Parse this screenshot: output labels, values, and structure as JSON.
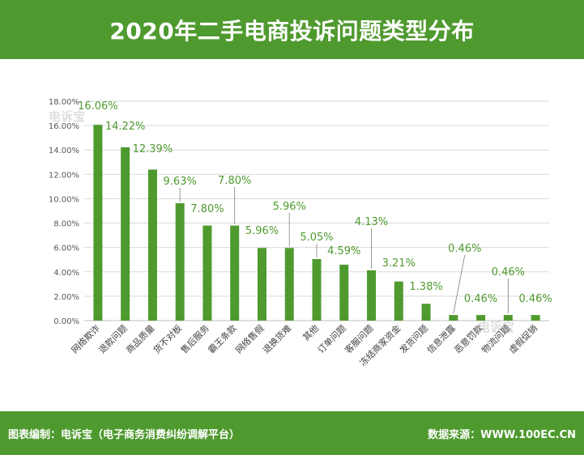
{
  "header": {
    "title": "2020年二手电商投诉问题类型分布"
  },
  "footer": {
    "left": "图表编制：电诉宝（电子商务消费纠纷调解平台）",
    "right": "数据来源：WWW.100EC.CN"
  },
  "watermark": {
    "text": "电诉宝"
  },
  "colors": {
    "header_bg": "#4f9a2f",
    "bar": "#4f9a2f",
    "label": "#4f9a2f",
    "grid": "#d9d9d9"
  },
  "chart_data": {
    "type": "bar",
    "title": "2020年二手电商投诉问题类型分布",
    "xlabel": "",
    "ylabel": "",
    "ylim": [
      0,
      18
    ],
    "y_ticks": [
      "0.00%",
      "2.00%",
      "4.00%",
      "6.00%",
      "8.00%",
      "10.00%",
      "12.00%",
      "14.00%",
      "16.00%",
      "18.00%"
    ],
    "grid": true,
    "categories": [
      "网络欺诈",
      "退款问题",
      "商品质量",
      "货不对板",
      "售后服务",
      "霸王条款",
      "网络售假",
      "退换货难",
      "其他",
      "订单问题",
      "客服问题",
      "冻结商家资金",
      "发货问题",
      "信息泄露",
      "恶意罚款",
      "物流问题",
      "虚假促销"
    ],
    "values": [
      16.06,
      14.22,
      12.39,
      9.63,
      7.8,
      7.8,
      5.96,
      5.96,
      5.05,
      4.59,
      4.13,
      3.21,
      1.38,
      0.46,
      0.46,
      0.46,
      0.46
    ],
    "data_labels": [
      "16.06%",
      "14.22%",
      "12.39%",
      "9.63%",
      "7.80%",
      "7.80%",
      "5.96%",
      "5.96%",
      "5.05%",
      "4.59%",
      "4.13%",
      "3.21%",
      "1.38%",
      "0.46%",
      "0.46%",
      "0.46%",
      "0.46%"
    ]
  }
}
